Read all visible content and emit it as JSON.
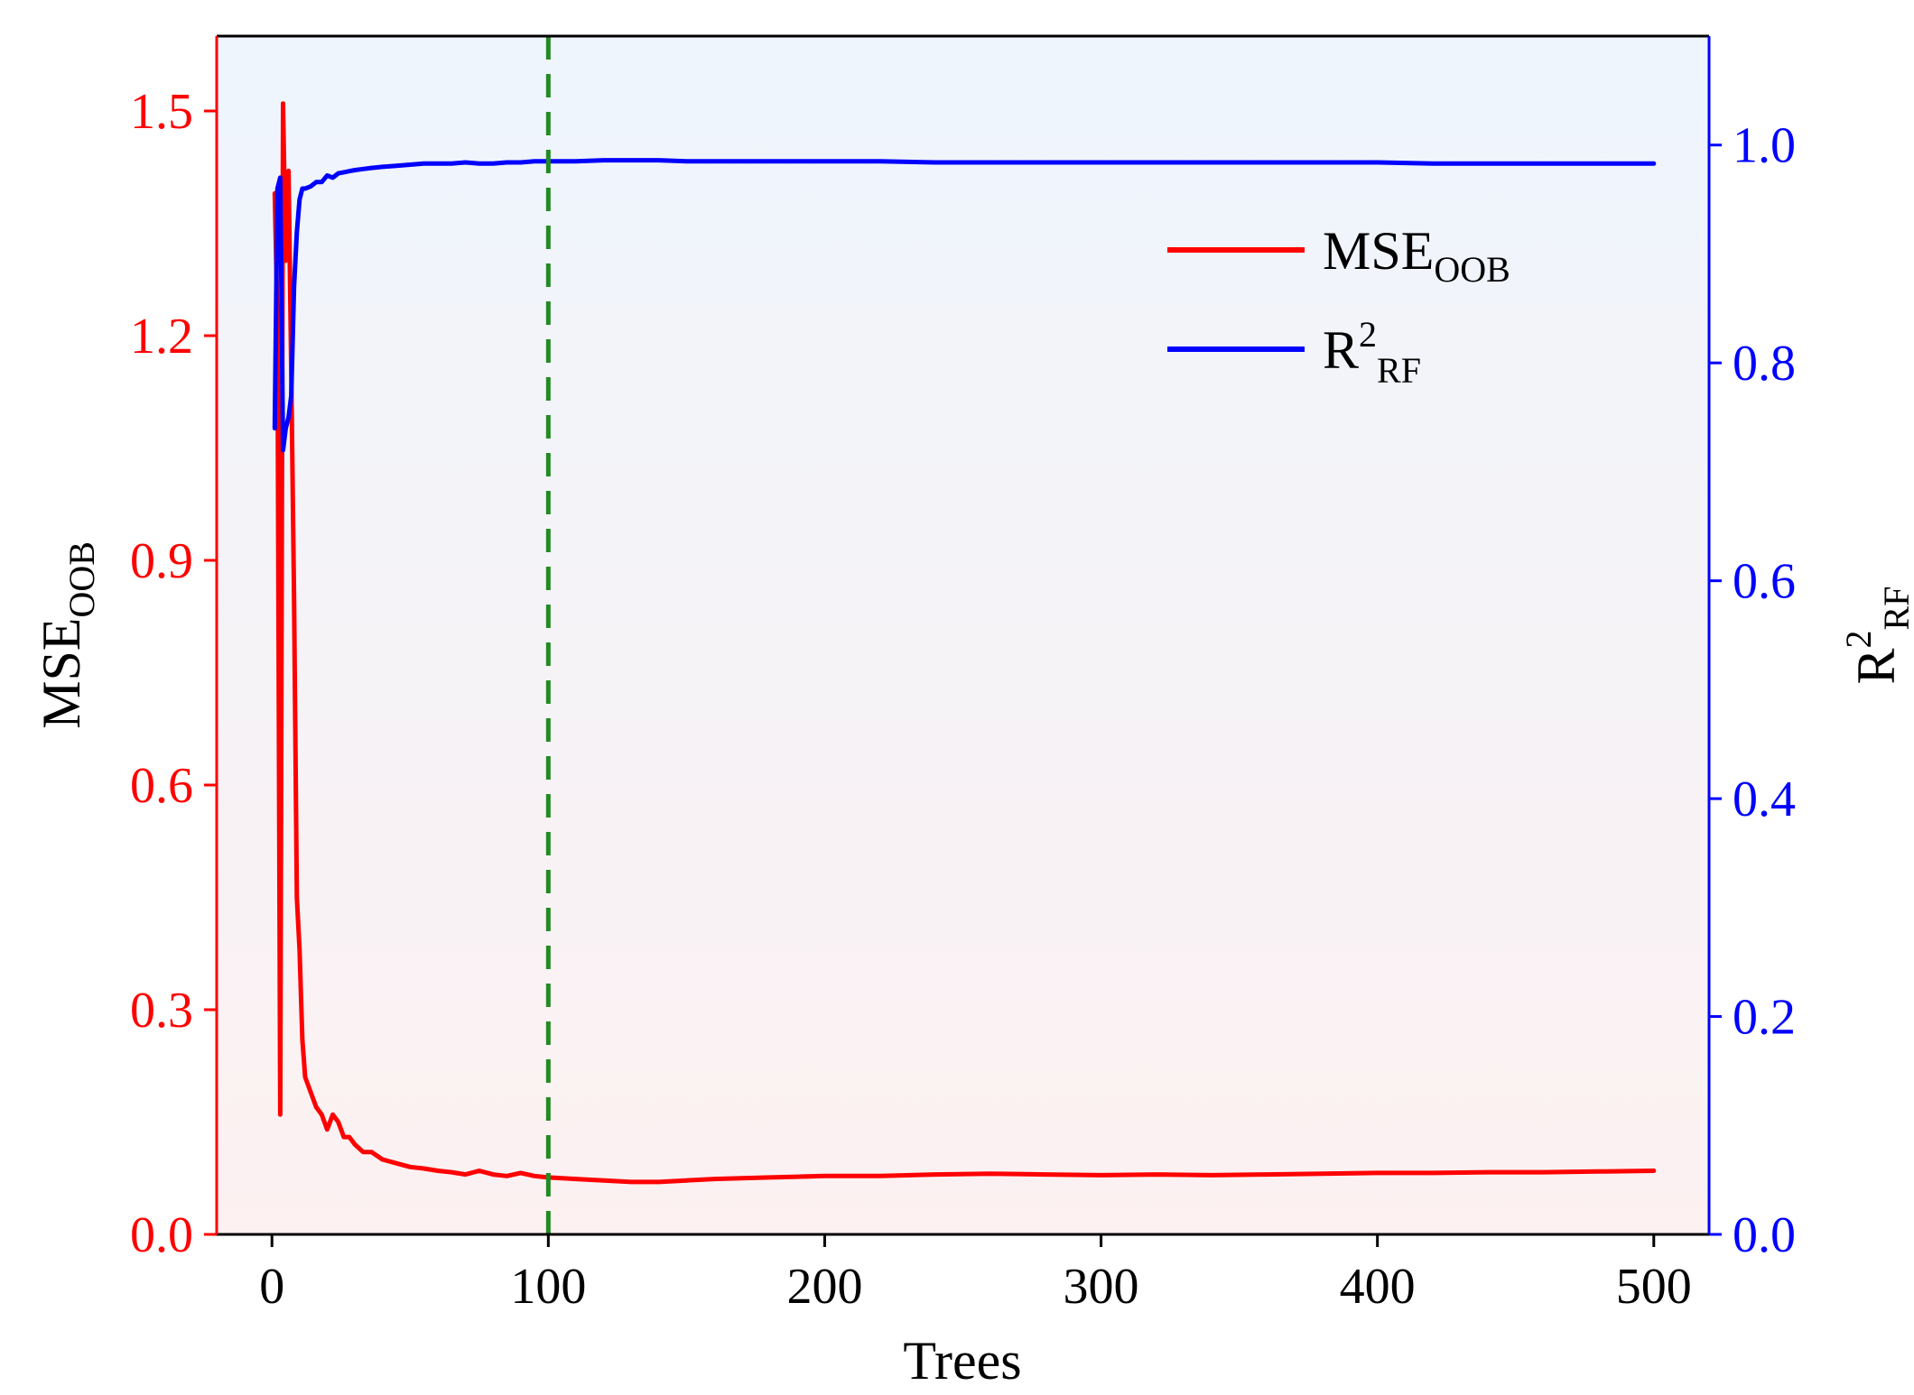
{
  "chart_data": {
    "type": "line",
    "x_axis": {
      "label": "Trees",
      "range": [
        -20,
        520
      ],
      "ticks": [
        0,
        100,
        200,
        300,
        400,
        500
      ],
      "tick_labels": [
        "0",
        "100",
        "200",
        "300",
        "400",
        "500"
      ]
    },
    "y_left": {
      "label_main": "MSE",
      "label_sub": "OOB",
      "range": [
        0,
        1.6
      ],
      "ticks": [
        0,
        0.3,
        0.6,
        0.9,
        1.2,
        1.5
      ],
      "tick_labels": [
        "0.0",
        "0.3",
        "0.6",
        "0.9",
        "1.2",
        "1.5"
      ],
      "color": "#ff0000"
    },
    "y_right": {
      "label_main": "R",
      "label_sup": "2",
      "label_sub": "RF",
      "range": [
        0,
        1.1
      ],
      "ticks": [
        0,
        0.2,
        0.4,
        0.6,
        0.8,
        1.0
      ],
      "tick_labels": [
        "0.0",
        "0.2",
        "0.4",
        "0.6",
        "0.8",
        "1.0"
      ],
      "color": "#0000ff"
    },
    "reference_line": {
      "x": 100,
      "color": "#228b22",
      "style": "dashed"
    },
    "legend": {
      "placement": "upper-right",
      "entries": [
        {
          "main": "MSE",
          "sup": "",
          "sub": "OOB",
          "color": "#ff0000"
        },
        {
          "main": "R",
          "sup": "2",
          "sub": "RF",
          "color": "#0000ff"
        }
      ]
    },
    "background_gradient": {
      "top": "#eef5fd",
      "bottom": "#fdf1f1"
    },
    "series": [
      {
        "name": "MSEOOB",
        "axis": "left",
        "color": "#ff0000",
        "x": [
          1,
          2,
          3,
          4,
          5,
          6,
          7,
          8,
          9,
          10,
          11,
          12,
          14,
          16,
          18,
          20,
          22,
          24,
          26,
          28,
          30,
          33,
          36,
          40,
          45,
          50,
          55,
          60,
          65,
          70,
          75,
          80,
          85,
          90,
          95,
          100,
          110,
          120,
          130,
          140,
          150,
          160,
          170,
          180,
          190,
          200,
          220,
          240,
          260,
          280,
          300,
          320,
          340,
          360,
          380,
          400,
          420,
          440,
          460,
          480,
          500
        ],
        "y": [
          1.39,
          1.22,
          0.16,
          1.51,
          1.3,
          1.42,
          1.15,
          0.85,
          0.45,
          0.38,
          0.26,
          0.21,
          0.19,
          0.17,
          0.16,
          0.14,
          0.16,
          0.15,
          0.13,
          0.13,
          0.12,
          0.11,
          0.11,
          0.1,
          0.095,
          0.09,
          0.088,
          0.085,
          0.083,
          0.08,
          0.085,
          0.08,
          0.078,
          0.082,
          0.078,
          0.076,
          0.074,
          0.072,
          0.07,
          0.07,
          0.072,
          0.074,
          0.075,
          0.076,
          0.077,
          0.078,
          0.078,
          0.08,
          0.081,
          0.08,
          0.079,
          0.08,
          0.079,
          0.08,
          0.081,
          0.082,
          0.082,
          0.083,
          0.083,
          0.084,
          0.085
        ]
      },
      {
        "name": "R2RF",
        "axis": "right",
        "color": "#0000ff",
        "x": [
          1,
          2,
          3,
          4,
          5,
          6,
          7,
          8,
          9,
          10,
          11,
          12,
          14,
          16,
          18,
          20,
          22,
          24,
          26,
          28,
          30,
          33,
          36,
          40,
          45,
          50,
          55,
          60,
          65,
          70,
          75,
          80,
          85,
          90,
          95,
          100,
          110,
          120,
          130,
          140,
          150,
          160,
          170,
          180,
          190,
          200,
          220,
          240,
          260,
          280,
          300,
          320,
          340,
          360,
          380,
          400,
          420,
          440,
          460,
          480,
          500
        ],
        "y": [
          0.74,
          0.96,
          0.97,
          0.72,
          0.74,
          0.75,
          0.77,
          0.87,
          0.92,
          0.95,
          0.96,
          0.96,
          0.962,
          0.966,
          0.966,
          0.972,
          0.97,
          0.974,
          0.975,
          0.976,
          0.977,
          0.978,
          0.979,
          0.98,
          0.981,
          0.982,
          0.983,
          0.983,
          0.983,
          0.984,
          0.983,
          0.983,
          0.984,
          0.984,
          0.985,
          0.985,
          0.985,
          0.986,
          0.986,
          0.986,
          0.985,
          0.985,
          0.985,
          0.985,
          0.985,
          0.985,
          0.985,
          0.984,
          0.984,
          0.984,
          0.984,
          0.984,
          0.984,
          0.984,
          0.984,
          0.984,
          0.983,
          0.983,
          0.983,
          0.983,
          0.983
        ]
      }
    ]
  }
}
